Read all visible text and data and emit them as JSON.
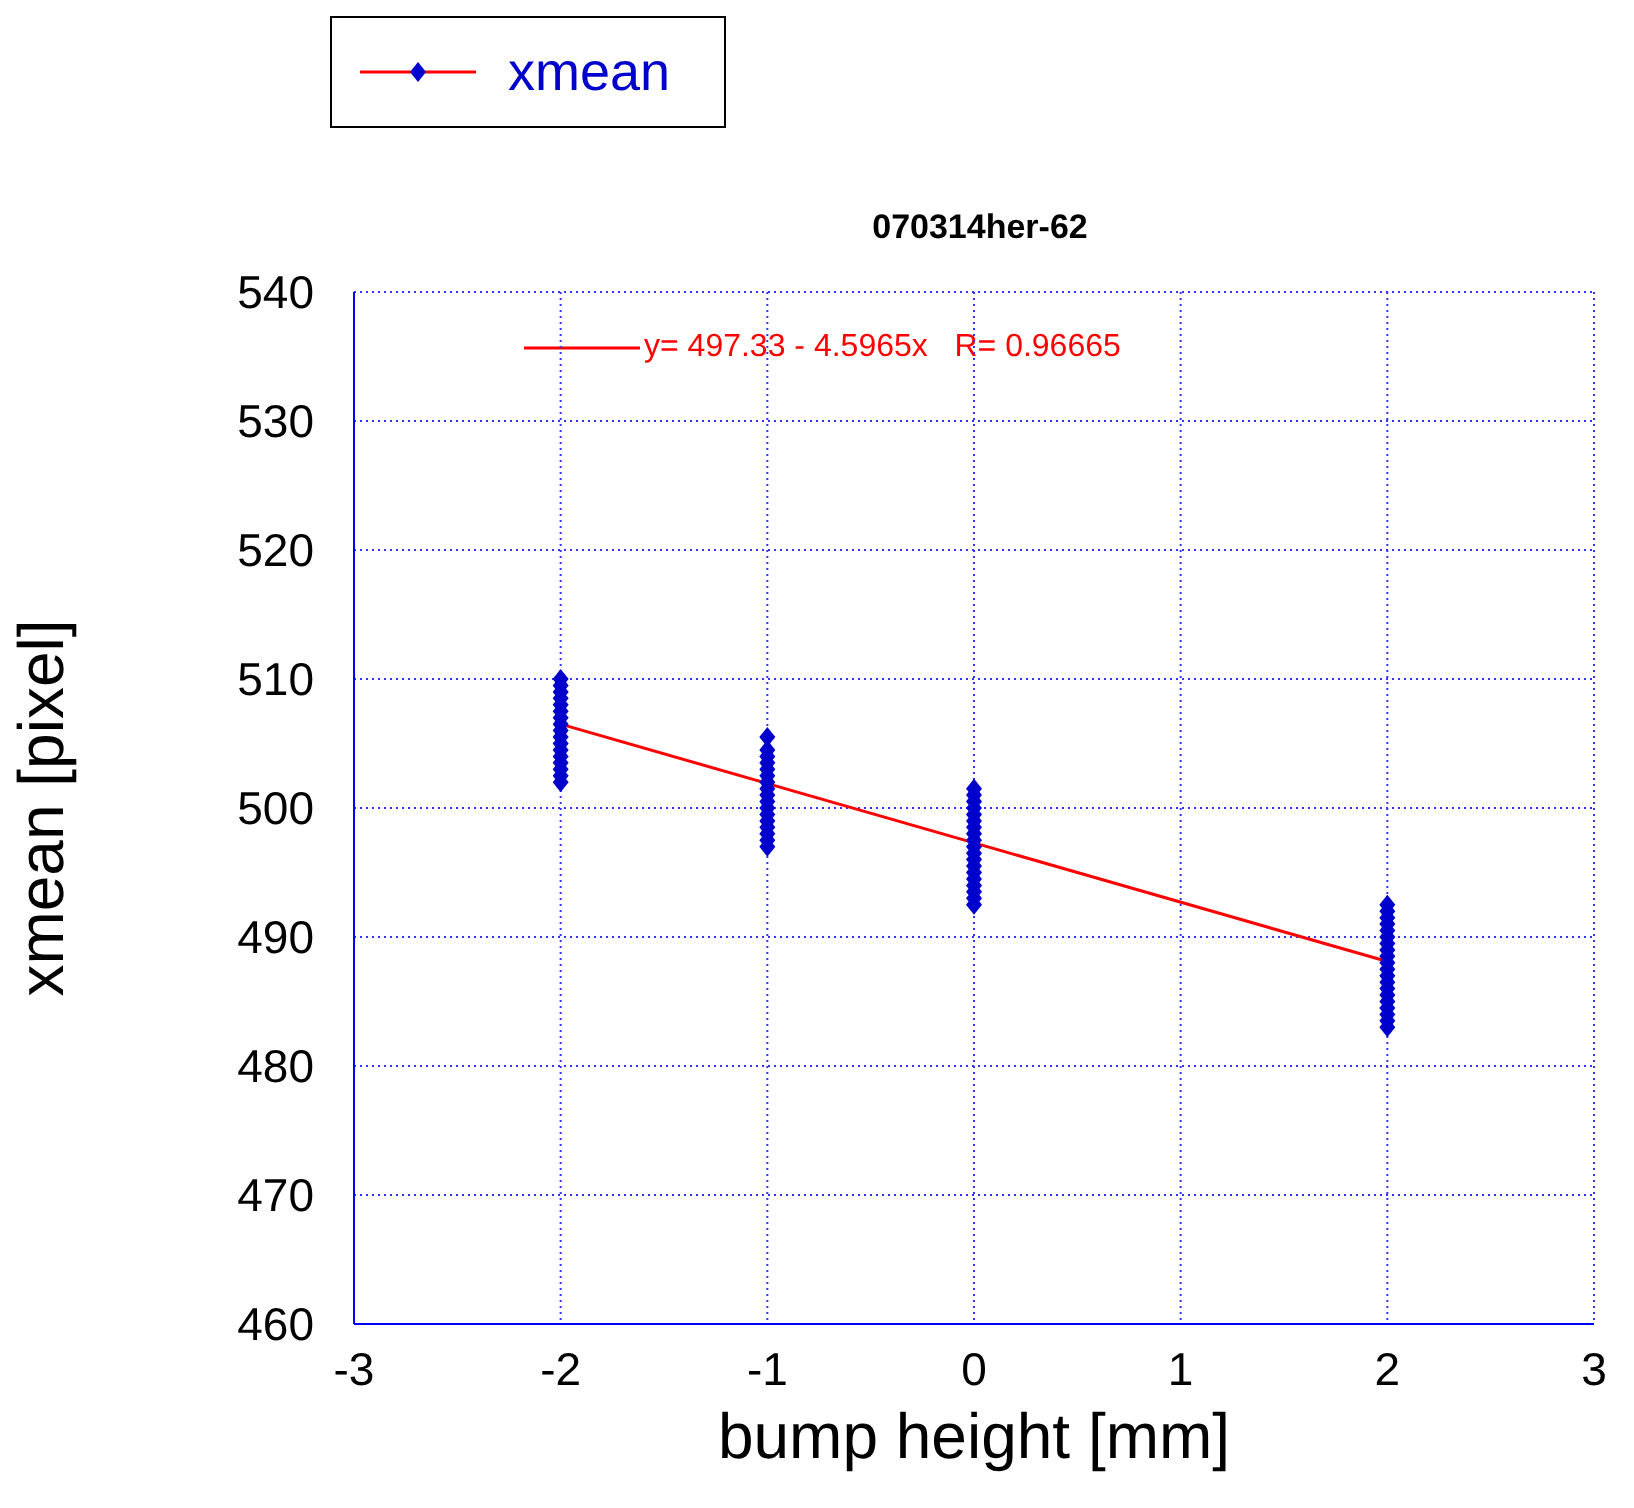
{
  "chart_data": {
    "type": "scatter",
    "title": "070314her-62",
    "xlabel": "bump height [mm]",
    "ylabel": "xmean [pixel]",
    "xlim": [
      -3,
      3
    ],
    "xticks": [
      -3,
      -2,
      -1,
      0,
      1,
      2,
      3
    ],
    "ylim": [
      460,
      540
    ],
    "yticks": [
      460,
      470,
      480,
      490,
      500,
      510,
      520,
      530,
      540
    ],
    "grid": true,
    "legend": "top left",
    "marker": "diamond",
    "series": [
      {
        "name": "xmean",
        "color": "#0000cc",
        "x": [
          -2,
          -2,
          -2,
          -2,
          -2,
          -2,
          -2,
          -2,
          -2,
          -2,
          -2,
          -2,
          -2,
          -2,
          -2,
          -2,
          -2,
          -1,
          -1,
          -1,
          -1,
          -1,
          -1,
          -1,
          -1,
          -1,
          -1,
          -1,
          -1,
          -1,
          -1,
          -1,
          -1,
          -1,
          0,
          0,
          0,
          0,
          0,
          0,
          0,
          0,
          0,
          0,
          0,
          0,
          0,
          0,
          0,
          0,
          0,
          0,
          0,
          2,
          2,
          2,
          2,
          2,
          2,
          2,
          2,
          2,
          2,
          2,
          2,
          2,
          2,
          2,
          2,
          2,
          2,
          2,
          2
        ],
        "values": [
          502,
          502.5,
          503,
          503.5,
          504,
          504.5,
          505,
          505.5,
          506,
          506.5,
          507,
          507.5,
          508,
          508.5,
          509,
          509.5,
          510,
          497,
          497.5,
          498,
          498.5,
          499,
          499.5,
          500,
          500.5,
          501,
          501.5,
          502,
          502.5,
          503,
          503.5,
          504,
          504.5,
          505.5,
          492.5,
          493,
          493.5,
          494,
          494.5,
          495,
          495.5,
          496,
          496.5,
          497,
          497.5,
          498,
          498.5,
          499,
          499.5,
          500,
          500.5,
          501,
          501.5,
          483,
          483.5,
          484,
          484.5,
          485,
          485.5,
          486,
          486.5,
          487,
          487.5,
          488,
          488.5,
          489,
          489.5,
          490,
          490.5,
          491,
          491.5,
          492,
          492.5
        ]
      },
      {
        "name": "y= 497.33 - 4.5965x   R= 0.96665",
        "type": "line",
        "marker": "none",
        "color": "#ff0000",
        "x": [
          -2,
          2
        ],
        "values": [
          506.5,
          488.1
        ]
      }
    ]
  }
}
